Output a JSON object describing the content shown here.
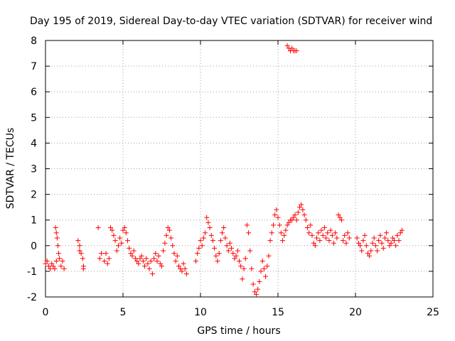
{
  "chart_data": {
    "type": "scatter",
    "title": "Day 195 of 2019, Sidereal Day-to-day VTEC variation (SDTVAR) for receiver wind",
    "xlabel": "GPS time / hours",
    "ylabel": "SDTVAR / TECUs",
    "xlim": [
      0,
      25
    ],
    "ylim": [
      -2,
      8
    ],
    "xticks": [
      "0",
      "5",
      "10",
      "15",
      "20",
      "25"
    ],
    "yticks": [
      "-2",
      "-1",
      "0",
      "1",
      "2",
      "3",
      "4",
      "5",
      "6",
      "7",
      "8"
    ],
    "grid": true,
    "marker": "+",
    "color": "#ff0000",
    "series": [
      {
        "name": "SDTVAR",
        "points": [
          [
            0.0,
            -0.7
          ],
          [
            0.1,
            -0.6
          ],
          [
            0.2,
            -0.8
          ],
          [
            0.3,
            -0.9
          ],
          [
            0.4,
            -0.7
          ],
          [
            0.5,
            -0.8
          ],
          [
            0.6,
            -0.9
          ],
          [
            0.7,
            -0.6
          ],
          [
            0.65,
            0.7
          ],
          [
            0.7,
            0.5
          ],
          [
            0.75,
            0.3
          ],
          [
            0.8,
            0.0
          ],
          [
            0.85,
            -0.3
          ],
          [
            0.9,
            -0.5
          ],
          [
            1.0,
            -0.8
          ],
          [
            1.1,
            -0.6
          ],
          [
            1.2,
            -0.9
          ],
          [
            2.1,
            0.2
          ],
          [
            2.2,
            0.0
          ],
          [
            2.2,
            -0.2
          ],
          [
            2.3,
            -0.3
          ],
          [
            2.4,
            -0.5
          ],
          [
            2.45,
            -0.8
          ],
          [
            2.45,
            -0.9
          ],
          [
            3.4,
            0.7
          ],
          [
            3.5,
            -0.5
          ],
          [
            3.6,
            -0.3
          ],
          [
            3.8,
            -0.6
          ],
          [
            3.9,
            -0.3
          ],
          [
            4.0,
            -0.7
          ],
          [
            4.1,
            -0.5
          ],
          [
            4.2,
            0.7
          ],
          [
            4.3,
            0.6
          ],
          [
            4.4,
            0.4
          ],
          [
            4.5,
            0.2
          ],
          [
            4.6,
            -0.2
          ],
          [
            4.7,
            0.0
          ],
          [
            4.8,
            0.3
          ],
          [
            4.9,
            0.1
          ],
          [
            5.0,
            0.6
          ],
          [
            5.1,
            0.7
          ],
          [
            5.2,
            0.5
          ],
          [
            5.3,
            0.2
          ],
          [
            5.4,
            -0.1
          ],
          [
            5.5,
            -0.3
          ],
          [
            5.6,
            -0.4
          ],
          [
            5.7,
            -0.2
          ],
          [
            5.8,
            -0.5
          ],
          [
            5.9,
            -0.6
          ],
          [
            6.0,
            -0.7
          ],
          [
            6.1,
            -0.5
          ],
          [
            6.2,
            -0.4
          ],
          [
            6.3,
            -0.6
          ],
          [
            6.4,
            -0.8
          ],
          [
            6.5,
            -0.5
          ],
          [
            6.6,
            -0.7
          ],
          [
            6.7,
            -0.9
          ],
          [
            6.8,
            -0.6
          ],
          [
            6.9,
            -1.1
          ],
          [
            7.0,
            -0.5
          ],
          [
            7.1,
            -0.3
          ],
          [
            7.2,
            -0.6
          ],
          [
            7.3,
            -0.4
          ],
          [
            7.4,
            -0.7
          ],
          [
            7.5,
            -0.8
          ],
          [
            7.6,
            -0.2
          ],
          [
            7.7,
            0.1
          ],
          [
            7.8,
            0.4
          ],
          [
            7.9,
            0.7
          ],
          [
            8.0,
            0.6
          ],
          [
            8.1,
            0.3
          ],
          [
            8.2,
            0.0
          ],
          [
            8.3,
            -0.3
          ],
          [
            8.4,
            -0.6
          ],
          [
            8.5,
            -0.4
          ],
          [
            8.6,
            -0.8
          ],
          [
            8.7,
            -0.9
          ],
          [
            8.8,
            -1.0
          ],
          [
            8.9,
            -0.7
          ],
          [
            9.0,
            -0.9
          ],
          [
            9.1,
            -1.1
          ],
          [
            9.7,
            -0.6
          ],
          [
            9.8,
            -0.3
          ],
          [
            9.9,
            -0.1
          ],
          [
            10.0,
            0.2
          ],
          [
            10.1,
            0.0
          ],
          [
            10.2,
            0.3
          ],
          [
            10.3,
            0.5
          ],
          [
            10.4,
            1.1
          ],
          [
            10.5,
            0.9
          ],
          [
            10.6,
            0.7
          ],
          [
            10.7,
            0.4
          ],
          [
            10.8,
            0.2
          ],
          [
            10.9,
            -0.1
          ],
          [
            11.0,
            -0.4
          ],
          [
            11.1,
            -0.6
          ],
          [
            11.2,
            -0.3
          ],
          [
            11.3,
            0.2
          ],
          [
            11.4,
            0.5
          ],
          [
            11.5,
            0.7
          ],
          [
            11.6,
            0.3
          ],
          [
            11.7,
            0.0
          ],
          [
            11.8,
            -0.2
          ],
          [
            11.9,
            0.1
          ],
          [
            12.0,
            -0.1
          ],
          [
            12.1,
            -0.3
          ],
          [
            12.2,
            -0.5
          ],
          [
            12.3,
            -0.4
          ],
          [
            12.4,
            -0.2
          ],
          [
            12.5,
            -0.6
          ],
          [
            12.6,
            -0.8
          ],
          [
            12.7,
            -1.3
          ],
          [
            12.8,
            -0.9
          ],
          [
            12.9,
            -0.5
          ],
          [
            13.0,
            0.8
          ],
          [
            13.1,
            0.5
          ],
          [
            13.2,
            -0.2
          ],
          [
            13.3,
            -0.9
          ],
          [
            13.4,
            -1.5
          ],
          [
            13.5,
            -1.8
          ],
          [
            13.6,
            -1.9
          ],
          [
            13.7,
            -1.7
          ],
          [
            13.8,
            -1.4
          ],
          [
            13.9,
            -1.0
          ],
          [
            14.0,
            -0.6
          ],
          [
            14.1,
            -0.9
          ],
          [
            14.2,
            -1.2
          ],
          [
            14.3,
            -0.8
          ],
          [
            14.4,
            -0.4
          ],
          [
            14.5,
            0.2
          ],
          [
            14.6,
            0.5
          ],
          [
            14.7,
            0.8
          ],
          [
            14.8,
            1.2
          ],
          [
            14.9,
            1.4
          ],
          [
            15.0,
            1.1
          ],
          [
            15.1,
            0.8
          ],
          [
            15.2,
            0.5
          ],
          [
            15.3,
            0.2
          ],
          [
            15.4,
            0.4
          ],
          [
            15.5,
            0.6
          ],
          [
            15.6,
            0.8
          ],
          [
            15.7,
            0.9
          ],
          [
            15.8,
            1.0
          ],
          [
            15.9,
            1.0
          ],
          [
            16.0,
            1.1
          ],
          [
            16.1,
            1.2
          ],
          [
            16.2,
            1.0
          ],
          [
            16.3,
            1.3
          ],
          [
            16.4,
            1.5
          ],
          [
            16.5,
            1.6
          ],
          [
            16.6,
            1.4
          ],
          [
            16.7,
            1.2
          ],
          [
            16.8,
            1.0
          ],
          [
            16.9,
            0.7
          ],
          [
            17.0,
            0.5
          ],
          [
            17.1,
            0.8
          ],
          [
            17.2,
            0.4
          ],
          [
            17.3,
            0.1
          ],
          [
            17.4,
            0.0
          ],
          [
            17.5,
            0.3
          ],
          [
            17.6,
            0.5
          ],
          [
            17.7,
            0.2
          ],
          [
            17.8,
            0.6
          ],
          [
            17.9,
            0.4
          ],
          [
            18.0,
            0.7
          ],
          [
            18.1,
            0.3
          ],
          [
            18.2,
            0.5
          ],
          [
            18.3,
            0.2
          ],
          [
            18.4,
            0.6
          ],
          [
            18.5,
            0.4
          ],
          [
            18.6,
            0.1
          ],
          [
            18.7,
            0.5
          ],
          [
            18.8,
            0.3
          ],
          [
            18.9,
            1.2
          ],
          [
            19.0,
            1.1
          ],
          [
            19.1,
            1.0
          ],
          [
            19.2,
            0.2
          ],
          [
            19.3,
            0.4
          ],
          [
            19.4,
            0.1
          ],
          [
            19.5,
            0.5
          ],
          [
            19.6,
            0.3
          ],
          [
            20.1,
            0.3
          ],
          [
            20.2,
            0.1
          ],
          [
            20.3,
            0.0
          ],
          [
            20.4,
            -0.2
          ],
          [
            20.5,
            0.2
          ],
          [
            20.6,
            0.4
          ],
          [
            20.7,
            0.0
          ],
          [
            20.8,
            -0.3
          ],
          [
            20.9,
            -0.4
          ],
          [
            21.0,
            -0.2
          ],
          [
            21.1,
            0.1
          ],
          [
            21.2,
            0.3
          ],
          [
            21.3,
            0.0
          ],
          [
            21.4,
            -0.2
          ],
          [
            21.5,
            0.2
          ],
          [
            21.6,
            0.4
          ],
          [
            21.7,
            0.1
          ],
          [
            21.8,
            -0.1
          ],
          [
            21.9,
            0.3
          ],
          [
            22.0,
            0.5
          ],
          [
            22.1,
            0.2
          ],
          [
            22.2,
            0.0
          ],
          [
            22.3,
            0.1
          ],
          [
            22.4,
            0.3
          ],
          [
            22.5,
            0.2
          ],
          [
            22.6,
            0.0
          ],
          [
            22.7,
            0.4
          ],
          [
            22.8,
            0.2
          ],
          [
            22.9,
            0.5
          ],
          [
            23.0,
            0.6
          ],
          [
            15.6,
            7.8
          ],
          [
            15.7,
            7.7
          ],
          [
            15.8,
            7.6
          ],
          [
            15.9,
            7.7
          ],
          [
            16.0,
            7.6
          ],
          [
            16.1,
            7.6
          ],
          [
            16.2,
            7.6
          ]
        ]
      }
    ]
  }
}
